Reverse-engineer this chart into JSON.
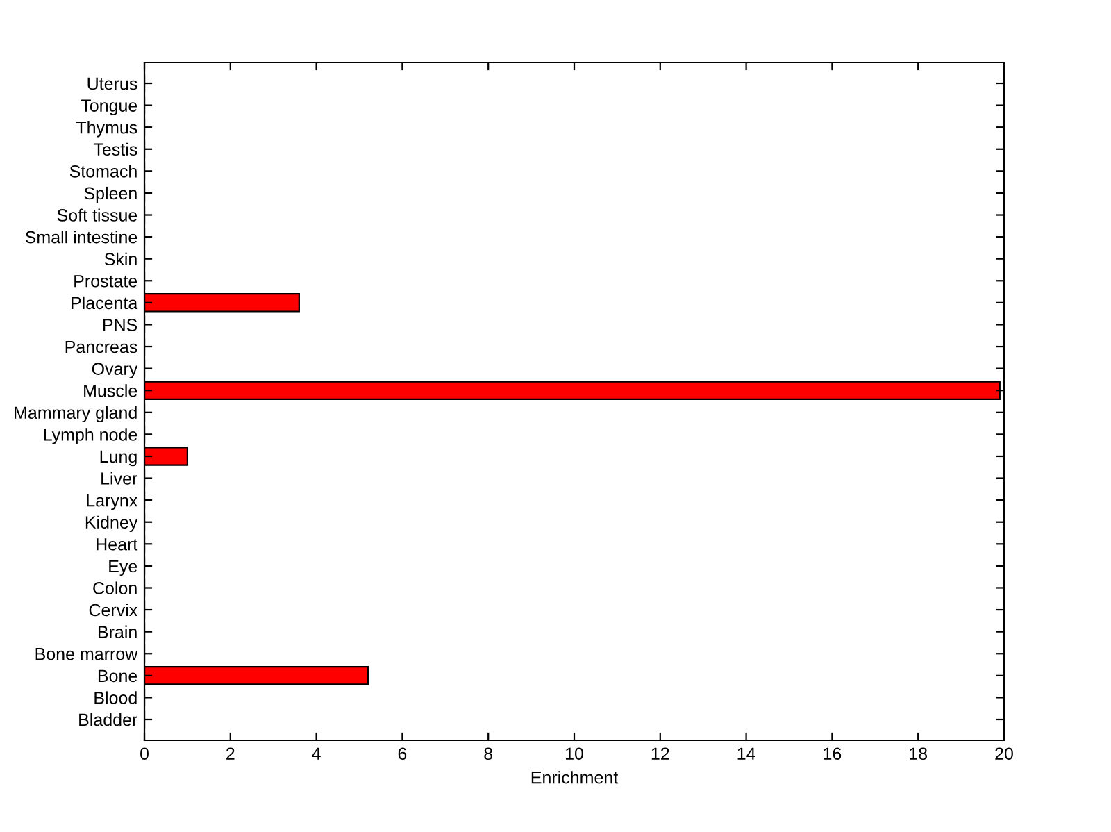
{
  "chart_data": {
    "type": "bar",
    "orientation": "horizontal",
    "xlabel": "Enrichment",
    "categories": [
      "Uterus",
      "Tongue",
      "Thymus",
      "Testis",
      "Stomach",
      "Spleen",
      "Soft tissue",
      "Small intestine",
      "Skin",
      "Prostate",
      "Placenta",
      "PNS",
      "Pancreas",
      "Ovary",
      "Muscle",
      "Mammary gland",
      "Lymph node",
      "Lung",
      "Liver",
      "Larynx",
      "Kidney",
      "Heart",
      "Eye",
      "Colon",
      "Cervix",
      "Brain",
      "Bone marrow",
      "Bone",
      "Blood",
      "Bladder"
    ],
    "values": [
      0,
      0,
      0,
      0,
      0,
      0,
      0,
      0,
      0,
      0,
      3.6,
      0,
      0,
      0,
      19.9,
      0,
      0,
      1.0,
      0,
      0,
      0,
      0,
      0,
      0,
      0,
      0,
      0,
      5.2,
      0,
      0
    ],
    "color": "#ff0000",
    "xlim": [
      0,
      20
    ],
    "xticks": [
      0,
      2,
      4,
      6,
      8,
      10,
      12,
      14,
      16,
      18,
      20
    ],
    "grid": false,
    "legend": false
  }
}
